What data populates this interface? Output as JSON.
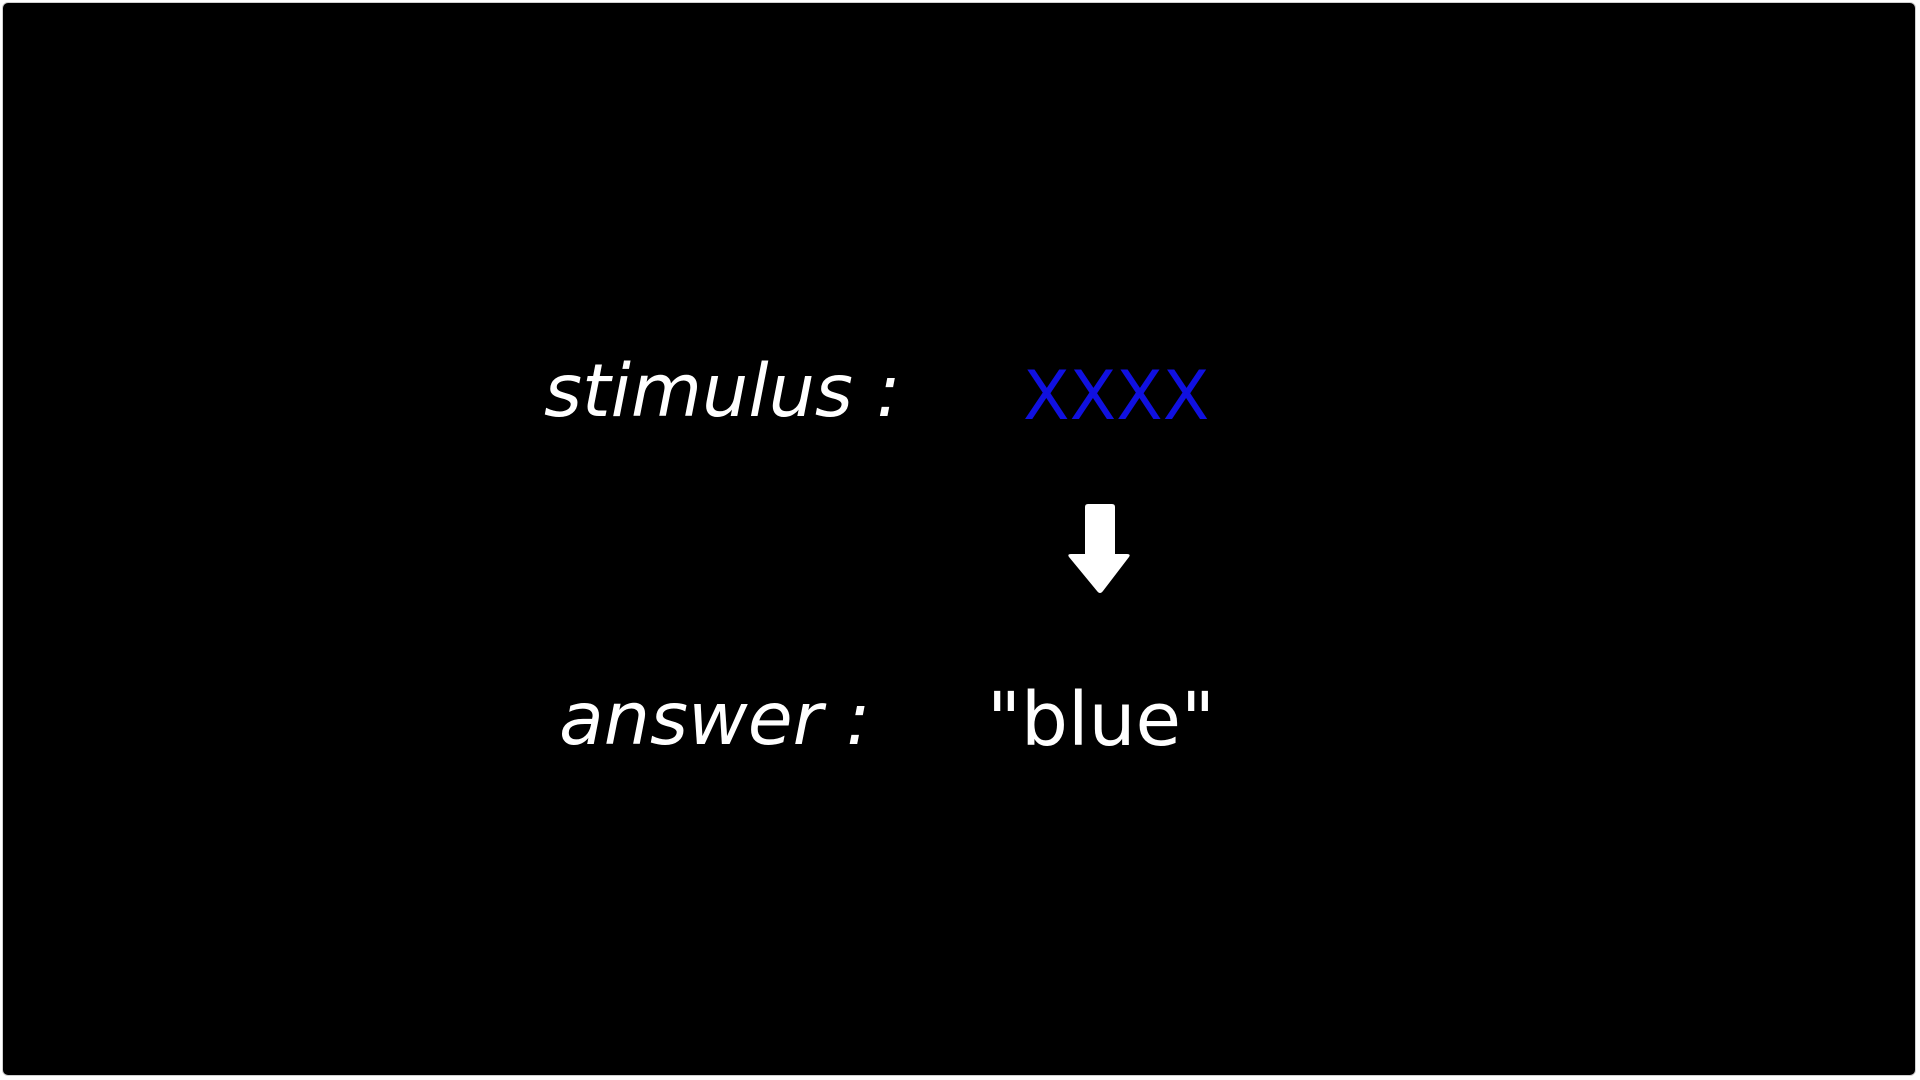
{
  "slide": {
    "stimulus_label": "stimulus :",
    "stimulus_word": "XXXX",
    "stimulus_color": "#1010e0",
    "arrow_icon": "arrow-down-icon",
    "answer_label": "answer :",
    "answer_word": "\"blue\""
  }
}
